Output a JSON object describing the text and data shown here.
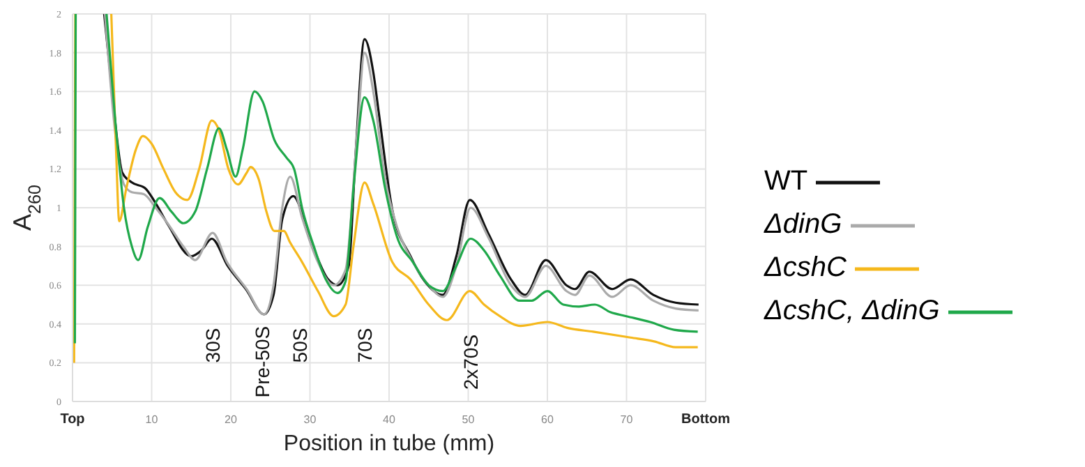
{
  "chart_data": {
    "type": "line",
    "xlabel": "Position in tube (mm)",
    "ylabel": "A$_{260}$",
    "xlim": [
      0,
      80
    ],
    "xticks": [
      {
        "value": 0,
        "label": "Top"
      },
      10,
      20,
      30,
      40,
      50,
      60,
      70,
      {
        "value": 80,
        "label": "Bottom"
      }
    ],
    "ylim": [
      0,
      2
    ],
    "yticks": [
      0,
      0.2,
      0.4,
      0.6,
      0.8,
      1,
      1.2,
      1.4,
      1.6,
      1.8,
      2
    ],
    "grid": true,
    "legend": "right",
    "marker": "none",
    "line_style": "solid",
    "annotations": [
      "30S",
      "Pre-50S",
      "50S",
      "70S",
      "2x70S"
    ],
    "series": [
      {
        "name": "WT",
        "color": "#111111",
        "x": [
          4,
          5,
          6.3,
          7.5,
          9.2,
          10.4,
          12.1,
          15,
          16.3,
          17.6,
          19.6,
          21.9,
          24.2,
          25.4,
          26.5,
          27.9,
          30,
          32.3,
          33.5,
          34.9,
          35.8,
          36.9,
          38,
          38.7,
          40.4,
          42.7,
          44.5,
          46.8,
          48.5,
          50.2,
          52.5,
          55.4,
          57.2,
          59.8,
          62.4,
          63.5,
          65.3,
          68.2,
          70.5,
          73.4,
          76.2,
          79.1
        ],
        "values": [
          2,
          1.6,
          1.18,
          1.13,
          1.1,
          1.03,
          0.91,
          0.75,
          0.78,
          0.84,
          0.7,
          0.58,
          0.45,
          0.55,
          0.94,
          1.06,
          0.84,
          0.63,
          0.6,
          0.7,
          1.3,
          1.87,
          1.7,
          1.49,
          0.99,
          0.75,
          0.62,
          0.55,
          0.75,
          1.04,
          0.87,
          0.63,
          0.55,
          0.73,
          0.6,
          0.58,
          0.67,
          0.58,
          0.63,
          0.55,
          0.51,
          0.5
        ]
      },
      {
        "name": "ΔdinG",
        "color": "#aaaaaa",
        "x": [
          4.1,
          5.5,
          6.5,
          7.5,
          9,
          10.5,
          12,
          14,
          15.5,
          17.7,
          19.5,
          22,
          24.2,
          25.4,
          26.5,
          27.5,
          29,
          31,
          33,
          34.5,
          36,
          36.9,
          38,
          39.5,
          41,
          43,
          45,
          46.8,
          48.5,
          50.3,
          52.5,
          55.4,
          57.2,
          59.8,
          62.4,
          63.5,
          65.3,
          68.2,
          70.5,
          73.4,
          76.2,
          79.1
        ],
        "values": [
          2,
          1.35,
          1.12,
          1.08,
          1.07,
          1,
          0.92,
          0.8,
          0.73,
          0.87,
          0.72,
          0.58,
          0.45,
          0.6,
          1,
          1.16,
          0.95,
          0.72,
          0.6,
          0.68,
          1.4,
          1.8,
          1.6,
          1.15,
          0.9,
          0.72,
          0.6,
          0.54,
          0.7,
          1,
          0.85,
          0.6,
          0.54,
          0.7,
          0.57,
          0.55,
          0.65,
          0.54,
          0.6,
          0.52,
          0.48,
          0.47
        ]
      },
      {
        "name": "ΔcshC",
        "color": "#f5b81c",
        "x": [
          0.2,
          0.35,
          2,
          4.9,
          5.5,
          5.9,
          6.8,
          8,
          8.9,
          10,
          11.5,
          13,
          14.5,
          16,
          17.6,
          18.5,
          19.7,
          20.9,
          22,
          22.5,
          23.5,
          24.5,
          25.5,
          26.7,
          27.5,
          29,
          31,
          33,
          34.5,
          35.5,
          36.9,
          38,
          40.4,
          42.7,
          45,
          47.3,
          50.2,
          52,
          54,
          56.6,
          60,
          62.5,
          65.8,
          70.5,
          73.5,
          76.2,
          79
        ],
        "values": [
          0.2,
          2,
          null,
          2,
          1.3,
          0.93,
          1.1,
          1.3,
          1.37,
          1.33,
          1.2,
          1.08,
          1.04,
          1.2,
          1.45,
          1.4,
          1.2,
          1.12,
          1.18,
          1.21,
          1.15,
          0.98,
          0.88,
          0.88,
          0.82,
          0.72,
          0.57,
          0.44,
          0.5,
          0.8,
          1.13,
          1.02,
          0.72,
          0.63,
          0.5,
          0.42,
          0.57,
          0.5,
          0.44,
          0.39,
          0.41,
          0.38,
          0.36,
          0.33,
          0.31,
          0.28,
          0.28
        ]
      },
      {
        "name": "ΔcshC, ΔdinG",
        "color": "#1fa84a",
        "x": [
          0.3,
          0.4,
          2,
          4.3,
          5.5,
          6.5,
          7.5,
          8.3,
          9.5,
          11,
          12.5,
          14,
          15.5,
          17,
          18.5,
          19.5,
          20.6,
          21.5,
          23,
          24,
          25.5,
          27,
          28,
          29,
          30.5,
          32,
          33.5,
          34.5,
          35.5,
          36.9,
          38,
          39.5,
          41,
          43,
          45,
          46.8,
          48.5,
          50.3,
          52,
          54,
          56.5,
          58,
          60,
          62,
          64,
          66,
          68,
          70,
          73,
          76,
          79
        ],
        "values": [
          0.3,
          2,
          null,
          2,
          1.4,
          1,
          0.8,
          0.73,
          0.9,
          1.05,
          0.98,
          0.92,
          0.98,
          1.2,
          1.41,
          1.3,
          1.16,
          1.3,
          1.6,
          1.55,
          1.35,
          1.26,
          1.2,
          1,
          0.8,
          0.63,
          0.56,
          0.62,
          1.1,
          1.57,
          1.45,
          1.1,
          0.85,
          0.72,
          0.6,
          0.57,
          0.7,
          0.84,
          0.78,
          0.65,
          0.52,
          0.52,
          0.57,
          0.5,
          0.49,
          0.5,
          0.46,
          0.44,
          0.41,
          0.37,
          0.36
        ]
      }
    ]
  }
}
